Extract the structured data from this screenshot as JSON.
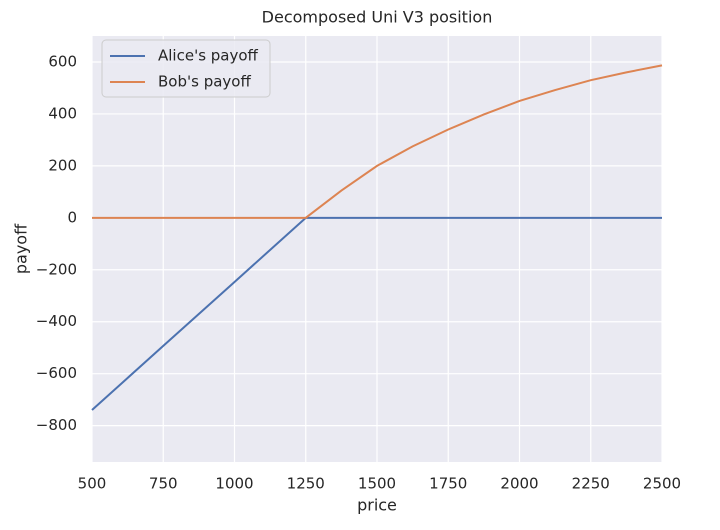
{
  "chart_data": {
    "type": "line",
    "title": "Decomposed Uni V3 position",
    "xlabel": "price",
    "ylabel": "payoff",
    "x": [
      500,
      750,
      1000,
      1250,
      1375,
      1500,
      1625,
      1750,
      1875,
      2000,
      2125,
      2250,
      2375,
      2500
    ],
    "series": [
      {
        "name": "Alice's payoff",
        "color": "#4c72b0",
        "values": [
          -740,
          -493,
          -247,
          0,
          0,
          0,
          0,
          0,
          0,
          0,
          0,
          0,
          0,
          0
        ]
      },
      {
        "name": "Bob's payoff",
        "color": "#dd8452",
        "values": [
          0,
          0,
          0,
          0,
          105,
          200,
          275,
          340,
          398,
          450,
          492,
          530,
          560,
          587
        ]
      }
    ],
    "xlim": [
      500,
      2500
    ],
    "xticks": [
      500,
      750,
      1000,
      1250,
      1500,
      1750,
      2000,
      2250,
      2500
    ],
    "ylim": [
      -940,
      700
    ],
    "yticks": [
      {
        "value": -800,
        "label": "−800"
      },
      {
        "value": -600,
        "label": "−600"
      },
      {
        "value": -400,
        "label": "−400"
      },
      {
        "value": -200,
        "label": "−200"
      },
      0,
      200,
      400,
      600
    ],
    "grid": true,
    "legend": "upper-left"
  }
}
